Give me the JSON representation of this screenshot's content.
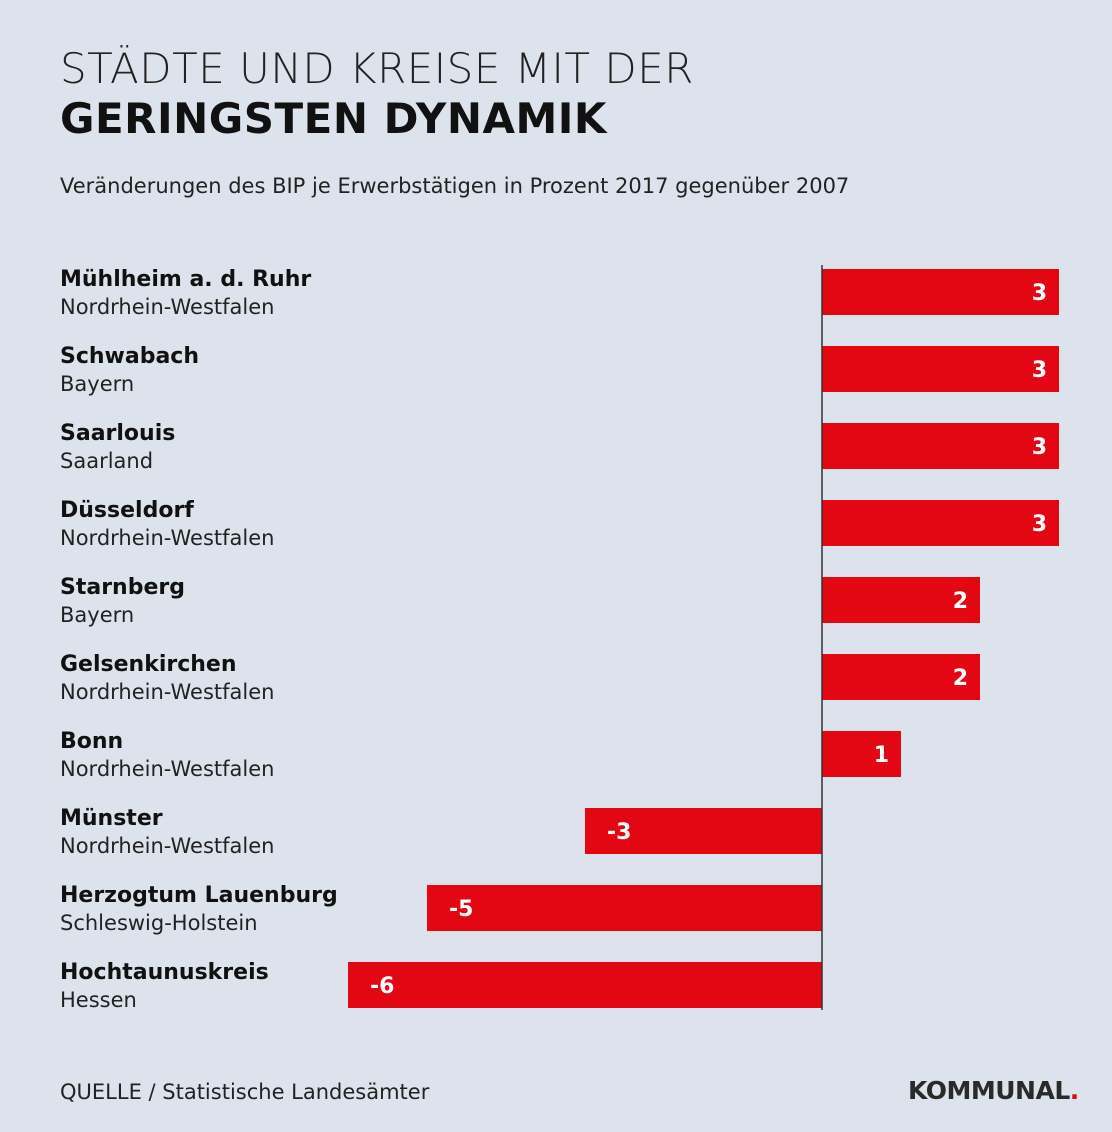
{
  "header": {
    "title_line1": "STÄDTE UND KREISE MIT DER",
    "title_line2": "GERINGSTEN DYNAMIK",
    "subtitle": "Veränderungen des BIP je Erwerbstätigen in Prozent 2017 gegenüber 2007"
  },
  "footer": {
    "source": "QUELLE / Statistische Landesämter",
    "logo_text": "KOMMUNAL",
    "logo_dot": "."
  },
  "colors": {
    "background": "#dde3ec",
    "bar": "#e30613",
    "axis": "#333333",
    "bar_text": "#ffffff"
  },
  "chart_data": {
    "type": "bar",
    "orientation": "horizontal",
    "title": "STÄDTE UND KREISE MIT DER GERINGSTEN DYNAMIK",
    "subtitle": "Veränderungen des BIP je Erwerbstätigen in Prozent 2017 gegenüber 2007",
    "xlabel": "",
    "ylabel": "",
    "xlim": [
      -6,
      3
    ],
    "grid": false,
    "categories": [
      "Mühlheim a. d. Ruhr",
      "Schwabach",
      "Saarlouis",
      "Düsseldorf",
      "Starnberg",
      "Gelsenkirchen",
      "Bonn",
      "Münster",
      "Herzogtum Lauenburg",
      "Hochtaunuskreis"
    ],
    "regions": [
      "Nordrhein-Westfalen",
      "Bayern",
      "Saarland",
      "Nordrhein-Westfalen",
      "Bayern",
      "Nordrhein-Westfalen",
      "Nordrhein-Westfalen",
      "Nordrhein-Westfalen",
      "Schleswig-Holstein",
      "Hessen"
    ],
    "values": [
      3,
      3,
      3,
      3,
      2,
      2,
      1,
      -3,
      -5,
      -6
    ]
  }
}
